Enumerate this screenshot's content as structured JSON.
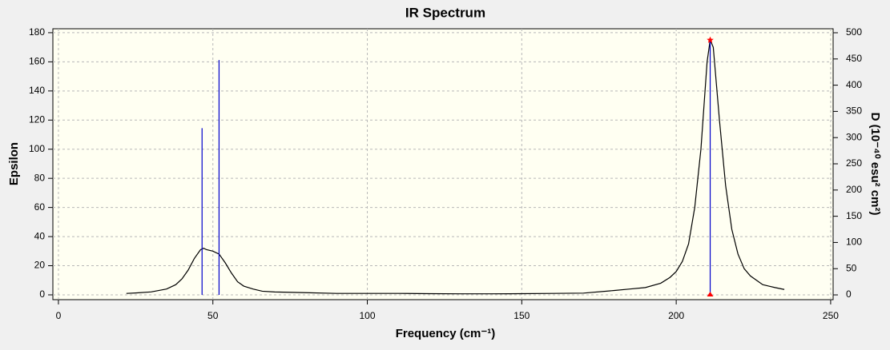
{
  "chart_data": {
    "type": "line",
    "title": "IR Spectrum",
    "x_label": "Frequency (cm⁻¹)",
    "y_label": "Epsilon",
    "y2_label": "D (10⁻⁴⁰ esu² cm²)",
    "xlim": [
      -1.8,
      250.8
    ],
    "xticks": [
      0,
      50,
      100,
      150,
      200,
      250
    ],
    "ylim": [
      -3.3,
      182.7
    ],
    "yticks": [
      0,
      20,
      40,
      60,
      80,
      100,
      120,
      140,
      160,
      180
    ],
    "y2lim": [
      -9.1,
      507.6
    ],
    "y2ticks": [
      0,
      50,
      100,
      150,
      200,
      250,
      300,
      350,
      400,
      450,
      500
    ],
    "grid": true,
    "spectrum": {
      "color": "#000000",
      "x": [
        22,
        25,
        30,
        35,
        38,
        40,
        42,
        44,
        46,
        47,
        48,
        50,
        52,
        54,
        56,
        58,
        60,
        63,
        66,
        70,
        80,
        90,
        100,
        110,
        120,
        130,
        140,
        150,
        160,
        170,
        180,
        185,
        190,
        195,
        198,
        200,
        202,
        204,
        206,
        208,
        210,
        211,
        212,
        214,
        216,
        218,
        220,
        222,
        224,
        226,
        228,
        230,
        232,
        235
      ],
      "values": [
        1,
        1.3,
        2,
        4,
        7,
        11,
        17,
        25,
        31,
        32,
        31,
        30,
        28,
        22,
        15,
        9,
        6,
        4,
        2.5,
        2,
        1.5,
        1,
        1,
        1,
        0.8,
        0.7,
        0.7,
        0.8,
        1,
        1.2,
        3,
        4,
        5,
        8,
        12,
        16,
        23,
        35,
        60,
        100,
        160,
        175,
        170,
        120,
        75,
        45,
        28,
        18,
        13,
        10,
        7,
        6,
        5,
        3.7
      ]
    },
    "sticks": {
      "color": "#0000cc",
      "axis": "y2",
      "x": [
        46.5,
        52,
        211
      ],
      "values": [
        318,
        448,
        486
      ]
    },
    "selected": 2,
    "marker_color": "#ff0000"
  }
}
